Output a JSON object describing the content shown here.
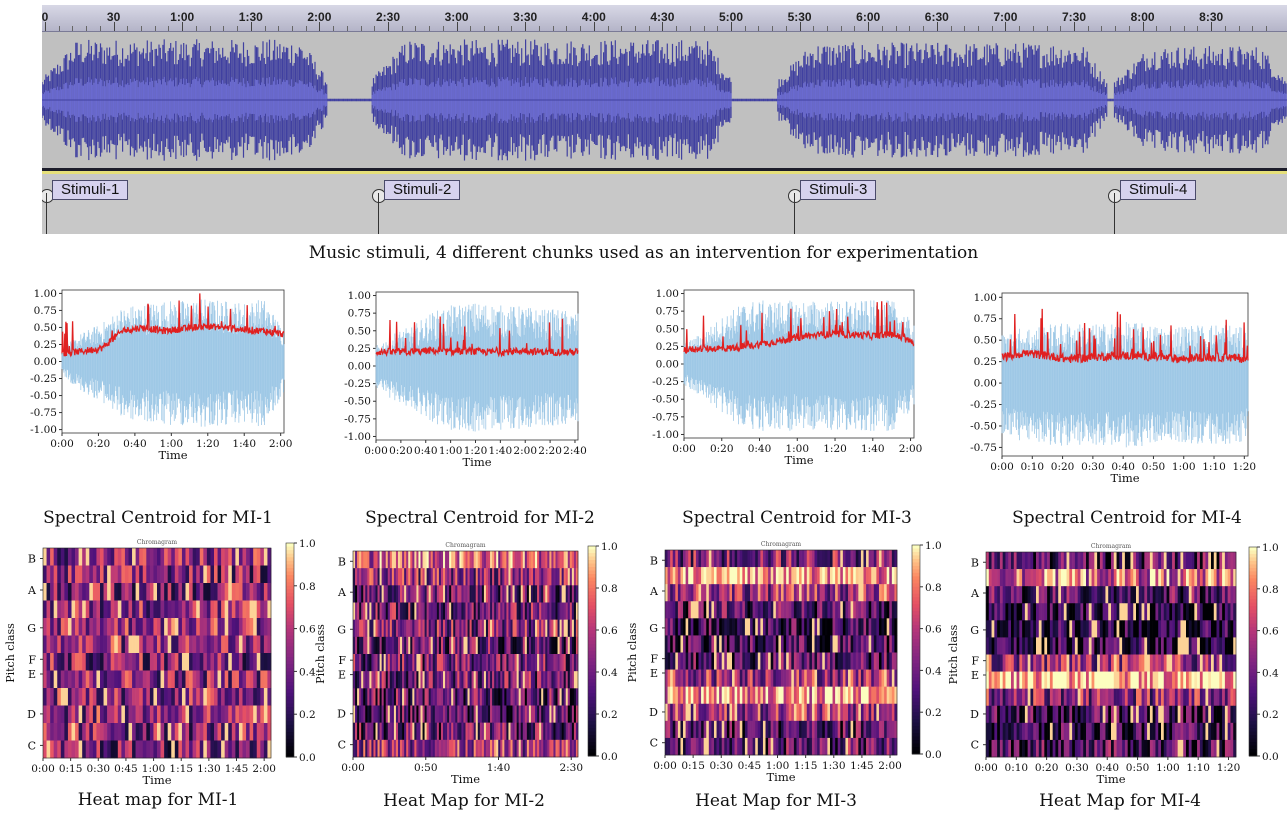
{
  "daw": {
    "ruler_labels": [
      "0",
      "30",
      "1:00",
      "1:30",
      "2:00",
      "2:30",
      "3:00",
      "3:30",
      "4:00",
      "4:30",
      "5:00",
      "5:30",
      "6:00",
      "6:30",
      "7:00",
      "7:30",
      "8:00",
      "8:30"
    ],
    "stimuli": [
      "Stimuli-1",
      "Stimuli-2",
      "Stimuli-3",
      "Stimuli-4"
    ],
    "wave_color": "#4040a0",
    "caption": "Music stimuli, 4 different chunks used as an intervention for experimentation"
  },
  "chart_data": [
    {
      "type": "line",
      "caption": "Spectral Centroid for MI-1",
      "xlabel": "Time",
      "x_ticks": [
        "0:00",
        "0:20",
        "0:40",
        "1:00",
        "1:20",
        "1:40",
        "2:00"
      ],
      "y_ticks": [
        "1.00",
        "0.75",
        "0.50",
        "0.25",
        "0.00",
        "-0.25",
        "-0.50",
        "-0.75",
        "-1.00"
      ],
      "ylim": [
        -1.05,
        1.05
      ],
      "series": [
        {
          "color": "#e02020",
          "profile": [
            0.12,
            0.15,
            0.2,
            0.45,
            0.5,
            0.45,
            0.48,
            0.52,
            0.5,
            0.47,
            0.45,
            0.4
          ]
        },
        {
          "color": "#9ec8e6",
          "profile": [
            0.2,
            0.45,
            0.6,
            0.85,
            0.9,
            0.95,
            0.95,
            0.98,
            0.95,
            0.92,
            0.98,
            0.5
          ]
        }
      ]
    },
    {
      "type": "line",
      "caption": "Spectral Centroid for MI-2",
      "xlabel": "Time",
      "x_ticks": [
        "0:00",
        "0:20",
        "0:40",
        "1:00",
        "1:20",
        "1:40",
        "2:00",
        "2:20",
        "2:40"
      ],
      "y_ticks": [
        "1.00",
        "0.75",
        "0.50",
        "0.25",
        "0.00",
        "-0.25",
        "-0.50",
        "-0.75",
        "-1.00"
      ],
      "ylim": [
        -1.05,
        1.05
      ],
      "series": [
        {
          "color": "#e02020",
          "profile": [
            0.2,
            0.2,
            0.2,
            0.22,
            0.2,
            0.21,
            0.2,
            0.2,
            0.22,
            0.2,
            0.2,
            0.2
          ]
        },
        {
          "color": "#9ec8e6",
          "profile": [
            0.3,
            0.5,
            0.6,
            0.8,
            0.9,
            0.95,
            0.95,
            0.9,
            0.9,
            0.85,
            0.85,
            0.8
          ]
        }
      ]
    },
    {
      "type": "line",
      "caption": "Spectral Centroid for MI-3",
      "xlabel": "Time",
      "x_ticks": [
        "0:00",
        "0:20",
        "0:40",
        "1:00",
        "1:20",
        "1:40",
        "2:00"
      ],
      "y_ticks": [
        "1.00",
        "0.75",
        "0.50",
        "0.25",
        "0.00",
        "-0.25",
        "-0.50",
        "-0.75",
        "-1.00"
      ],
      "ylim": [
        -1.05,
        1.05
      ],
      "series": [
        {
          "color": "#e02020",
          "profile": [
            0.2,
            0.22,
            0.22,
            0.25,
            0.3,
            0.35,
            0.4,
            0.42,
            0.42,
            0.4,
            0.42,
            0.3
          ]
        },
        {
          "color": "#9ec8e6",
          "profile": [
            0.3,
            0.5,
            0.75,
            0.95,
            0.95,
            0.95,
            0.95,
            0.95,
            0.95,
            0.95,
            0.95,
            0.6
          ]
        }
      ]
    },
    {
      "type": "line",
      "caption": "Spectral Centroid for MI-4",
      "xlabel": "Time",
      "x_ticks": [
        "0:00",
        "0:10",
        "0:20",
        "0:30",
        "0:40",
        "0:50",
        "1:00",
        "1:10",
        "1:20"
      ],
      "y_ticks": [
        "1.00",
        "0.75",
        "0.50",
        "0.25",
        "0.00",
        "-0.25",
        "-0.50",
        "-0.75"
      ],
      "ylim": [
        -0.85,
        1.05
      ],
      "series": [
        {
          "color": "#e02020",
          "profile": [
            0.3,
            0.35,
            0.32,
            0.28,
            0.3,
            0.32,
            0.32,
            0.3,
            0.28,
            0.3,
            0.3,
            0.28
          ]
        },
        {
          "color": "#9ec8e6",
          "profile": [
            0.6,
            0.7,
            0.72,
            0.75,
            0.72,
            0.75,
            0.75,
            0.7,
            0.72,
            0.72,
            0.75,
            0.65
          ]
        }
      ]
    },
    {
      "type": "heatmap",
      "caption": "Heat map for MI-1",
      "title": "Chromagram",
      "ylabel": "Pitch class",
      "xlabel": "Time",
      "x_ticks": [
        "0:00",
        "0:15",
        "0:30",
        "0:45",
        "1:00",
        "1:15",
        "1:30",
        "1:45",
        "2:00"
      ],
      "y_ticks": [
        "B",
        "A",
        "G",
        "F",
        "E",
        "D",
        "C"
      ],
      "colorbar_ticks": [
        "1.0",
        "0.8",
        "0.6",
        "0.4",
        "0.2",
        "0.0"
      ],
      "row_means": [
        0.5,
        0.45,
        0.45,
        0.5,
        0.55,
        0.5,
        0.45,
        0.5,
        0.5,
        0.5,
        0.45,
        0.4
      ],
      "columns": 64
    },
    {
      "type": "heatmap",
      "caption": "Heat Map for MI-2",
      "title": "Chromagram",
      "ylabel": "Pitch class",
      "xlabel": "Time",
      "x_ticks": [
        "0:00",
        "0:50",
        "1:40",
        "2:30"
      ],
      "y_ticks": [
        "B",
        "A",
        "G",
        "F",
        "E",
        "D",
        "C"
      ],
      "colorbar_ticks": [
        "1.0",
        "0.8",
        "0.6",
        "0.4",
        "0.2",
        "0.0"
      ],
      "row_means": [
        0.7,
        0.5,
        0.35,
        0.4,
        0.45,
        0.35,
        0.4,
        0.4,
        0.35,
        0.3,
        0.35,
        0.55
      ],
      "columns": 110
    },
    {
      "type": "heatmap",
      "caption": "Heat Map for MI-3",
      "title": "Chromagram",
      "ylabel": "Pitch class",
      "xlabel": "Time",
      "x_ticks": [
        "0:00",
        "0:15",
        "0:30",
        "0:45",
        "1:00",
        "1:15",
        "1:30",
        "1:45",
        "2:00"
      ],
      "y_ticks": [
        "B",
        "A",
        "G",
        "F",
        "E",
        "D",
        "C"
      ],
      "colorbar_ticks": [
        "1.0",
        "0.8",
        "0.6",
        "0.4",
        "0.2",
        "0.0"
      ],
      "row_means": [
        0.45,
        0.85,
        0.55,
        0.3,
        0.25,
        0.25,
        0.3,
        0.55,
        0.85,
        0.55,
        0.3,
        0.35
      ],
      "columns": 90
    },
    {
      "type": "heatmap",
      "caption": "Heat Map for MI-4",
      "title": "Chromagram",
      "ylabel": "Pitch class",
      "xlabel": "Time",
      "x_ticks": [
        "0:00",
        "0:10",
        "0:20",
        "0:30",
        "0:40",
        "0:50",
        "1:00",
        "1:10",
        "1:20"
      ],
      "y_ticks": [
        "B",
        "A",
        "G",
        "F",
        "E",
        "D",
        "C"
      ],
      "colorbar_ticks": [
        "1.0",
        "0.8",
        "0.6",
        "0.4",
        "0.2",
        "0.0"
      ],
      "row_means": [
        0.3,
        0.7,
        0.3,
        0.12,
        0.12,
        0.15,
        0.5,
        0.95,
        0.5,
        0.25,
        0.2,
        0.3
      ],
      "columns": 90
    }
  ]
}
